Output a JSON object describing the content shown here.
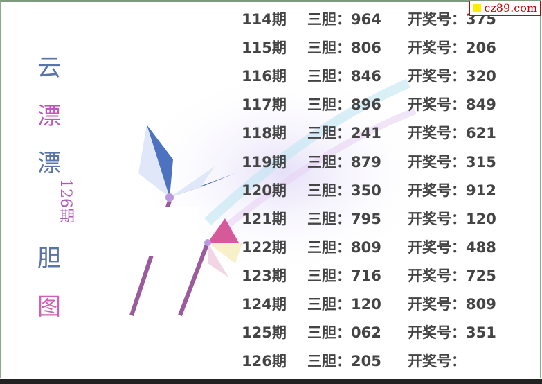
{
  "watermark": "cz89.com",
  "title_chars": [
    {
      "char": "云",
      "color": "#5a74a8"
    },
    {
      "char": "漂",
      "color": "#c256c0"
    },
    {
      "char": "漂",
      "color": "#5a74a8"
    },
    {
      "char": "胆",
      "color": "#5a74a8"
    },
    {
      "char": "图",
      "color": "#d060b8"
    }
  ],
  "period_label": "126期",
  "labels": {
    "dan": "三胆：",
    "draw": "开奖号："
  },
  "rows": [
    {
      "period": "114期",
      "dan": "964",
      "draw": "375"
    },
    {
      "period": "115期",
      "dan": "806",
      "draw": "206"
    },
    {
      "period": "116期",
      "dan": "846",
      "draw": "320"
    },
    {
      "period": "117期",
      "dan": "896",
      "draw": "849"
    },
    {
      "period": "118期",
      "dan": "241",
      "draw": "621"
    },
    {
      "period": "119期",
      "dan": "879",
      "draw": "315"
    },
    {
      "period": "120期",
      "dan": "350",
      "draw": "912"
    },
    {
      "period": "121期",
      "dan": "795",
      "draw": "120"
    },
    {
      "period": "122期",
      "dan": "809",
      "draw": "488"
    },
    {
      "period": "123期",
      "dan": "716",
      "draw": "725"
    },
    {
      "period": "124期",
      "dan": "120",
      "draw": "809"
    },
    {
      "period": "125期",
      "dan": "062",
      "draw": "351"
    },
    {
      "period": "126期",
      "dan": "205",
      "draw": ""
    }
  ]
}
